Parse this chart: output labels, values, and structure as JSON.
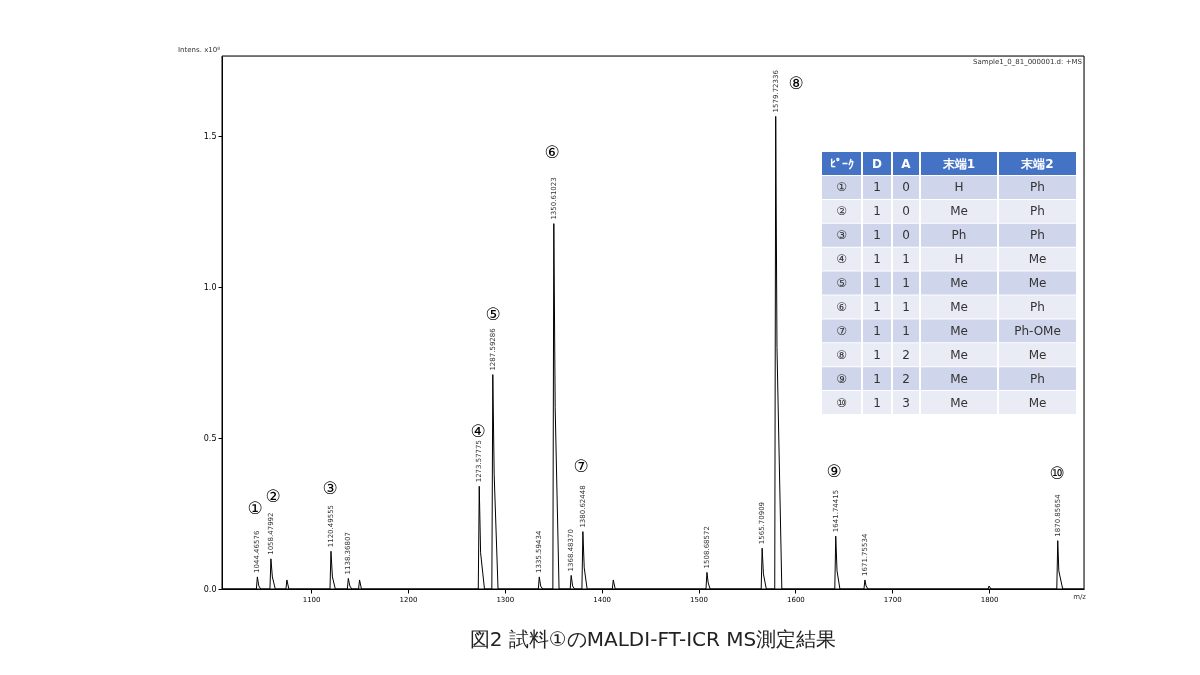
{
  "chart_data": {
    "type": "line",
    "title": "図2  試料①のMALDI-FT-ICR MS測定結果",
    "xlabel": "m/z",
    "ylabel": "Intens. x10⁸",
    "xlim": [
      1008,
      1898
    ],
    "ylim": [
      0,
      1.765
    ],
    "xticks": [
      1100,
      1200,
      1300,
      1400,
      1500,
      1600,
      1700,
      1800
    ],
    "yticks": [
      {
        "value": 0,
        "label": "0.0"
      },
      {
        "value": 0.5,
        "label": "0.5"
      },
      {
        "value": 1,
        "label": "1.0"
      },
      {
        "value": 1.5,
        "label": "1.5"
      }
    ],
    "x": [
      1008,
      1043.5,
      1044.5,
      1046,
      1048,
      1057.5,
      1058.5,
      1060,
      1063,
      1074,
      1075,
      1077,
      1119.5,
      1120.5,
      1122,
      1125,
      1137.4,
      1138.4,
      1140,
      1142,
      1149,
      1150,
      1152,
      1272.6,
      1273.6,
      1275,
      1279,
      1286.6,
      1287.6,
      1289,
      1293,
      1334.6,
      1335.6,
      1337,
      1339,
      1349.6,
      1350.6,
      1352,
      1356,
      1367.5,
      1368.5,
      1370,
      1372,
      1379.6,
      1380.6,
      1382,
      1385,
      1411,
      1412,
      1414,
      1507.7,
      1508.7,
      1510,
      1512,
      1564.7,
      1565.7,
      1567,
      1570,
      1578.7,
      1579.7,
      1581,
      1586,
      1640.7,
      1641.7,
      1643,
      1646,
      1670.8,
      1671.8,
      1673,
      1675,
      1799,
      1800,
      1802,
      1869.9,
      1870.9,
      1872,
      1876,
      1898
    ],
    "series": [
      {
        "color": "#000000",
        "values": [
          0,
          0,
          0.04,
          0.01,
          0,
          0,
          0.1,
          0.04,
          0,
          0,
          0.03,
          0,
          0,
          0.125,
          0.04,
          0,
          0,
          0.035,
          0.01,
          0,
          0,
          0.03,
          0,
          0,
          0.34,
          0.12,
          0,
          0,
          0.71,
          0.38,
          0,
          0,
          0.04,
          0.01,
          0,
          0,
          1.21,
          0.6,
          0,
          0,
          0.045,
          0.01,
          0,
          0,
          0.19,
          0.07,
          0,
          0,
          0.03,
          0,
          0,
          0.055,
          0.02,
          0,
          0,
          0.135,
          0.05,
          0,
          0,
          1.565,
          0.8,
          0,
          0,
          0.175,
          0.06,
          0,
          0,
          0.03,
          0.01,
          0,
          0,
          0.01,
          0,
          0,
          0.16,
          0.06,
          0,
          0
        ]
      }
    ],
    "annotations": [
      "Sample1_0_81_000001.d: +MS",
      {
        "text": "1044.46576",
        "x": 1044.5,
        "y": 0.04
      },
      {
        "text": "1058.47992",
        "x": 1058.5,
        "y": 0.1
      },
      {
        "text": "1120.49555",
        "x": 1120.5,
        "y": 0.125
      },
      {
        "text": "1138.36807",
        "x": 1138.4,
        "y": 0.035
      },
      {
        "text": "1273.57775",
        "x": 1273.6,
        "y": 0.34
      },
      {
        "text": "1287.59286",
        "x": 1287.6,
        "y": 0.71
      },
      {
        "text": "1335.59434",
        "x": 1335.6,
        "y": 0.04
      },
      {
        "text": "1350.61023",
        "x": 1350.6,
        "y": 1.21
      },
      {
        "text": "1368.48370",
        "x": 1368.5,
        "y": 0.045
      },
      {
        "text": "1380.62448",
        "x": 1380.6,
        "y": 0.19
      },
      {
        "text": "1508.68572",
        "x": 1508.7,
        "y": 0.055
      },
      {
        "text": "1565.70909",
        "x": 1565.7,
        "y": 0.135
      },
      {
        "text": "1579.72336",
        "x": 1579.7,
        "y": 1.565
      },
      {
        "text": "1641.74415",
        "x": 1641.7,
        "y": 0.175
      },
      {
        "text": "1671.75534",
        "x": 1671.8,
        "y": 0.03
      },
      {
        "text": "1870.85654",
        "x": 1870.9,
        "y": 0.16
      },
      "①",
      "②",
      "③",
      "④",
      "⑤",
      "⑥",
      "⑦",
      "⑧",
      "⑨",
      "⑩",
      "ﾋﾟｰｸ",
      "D",
      "A",
      "末端1",
      "末端2",
      "①",
      "1",
      "0",
      "H",
      "Ph",
      "②",
      "1",
      "0",
      "Me",
      "Ph",
      "③",
      "1",
      "0",
      "Ph",
      "Ph",
      "④",
      "1",
      "1",
      "H",
      "Me",
      "⑤",
      "1",
      "1",
      "Me",
      "Me",
      "⑥",
      "1",
      "1",
      "Me",
      "Ph",
      "⑦",
      "1",
      "1",
      "Me",
      "Ph-OMe",
      "⑧",
      "1",
      "2",
      "Me",
      "Me",
      "⑨",
      "1",
      "2",
      "Me",
      "Ph",
      "⑩",
      "1",
      "3",
      "Me",
      "Me"
    ]
  }
}
